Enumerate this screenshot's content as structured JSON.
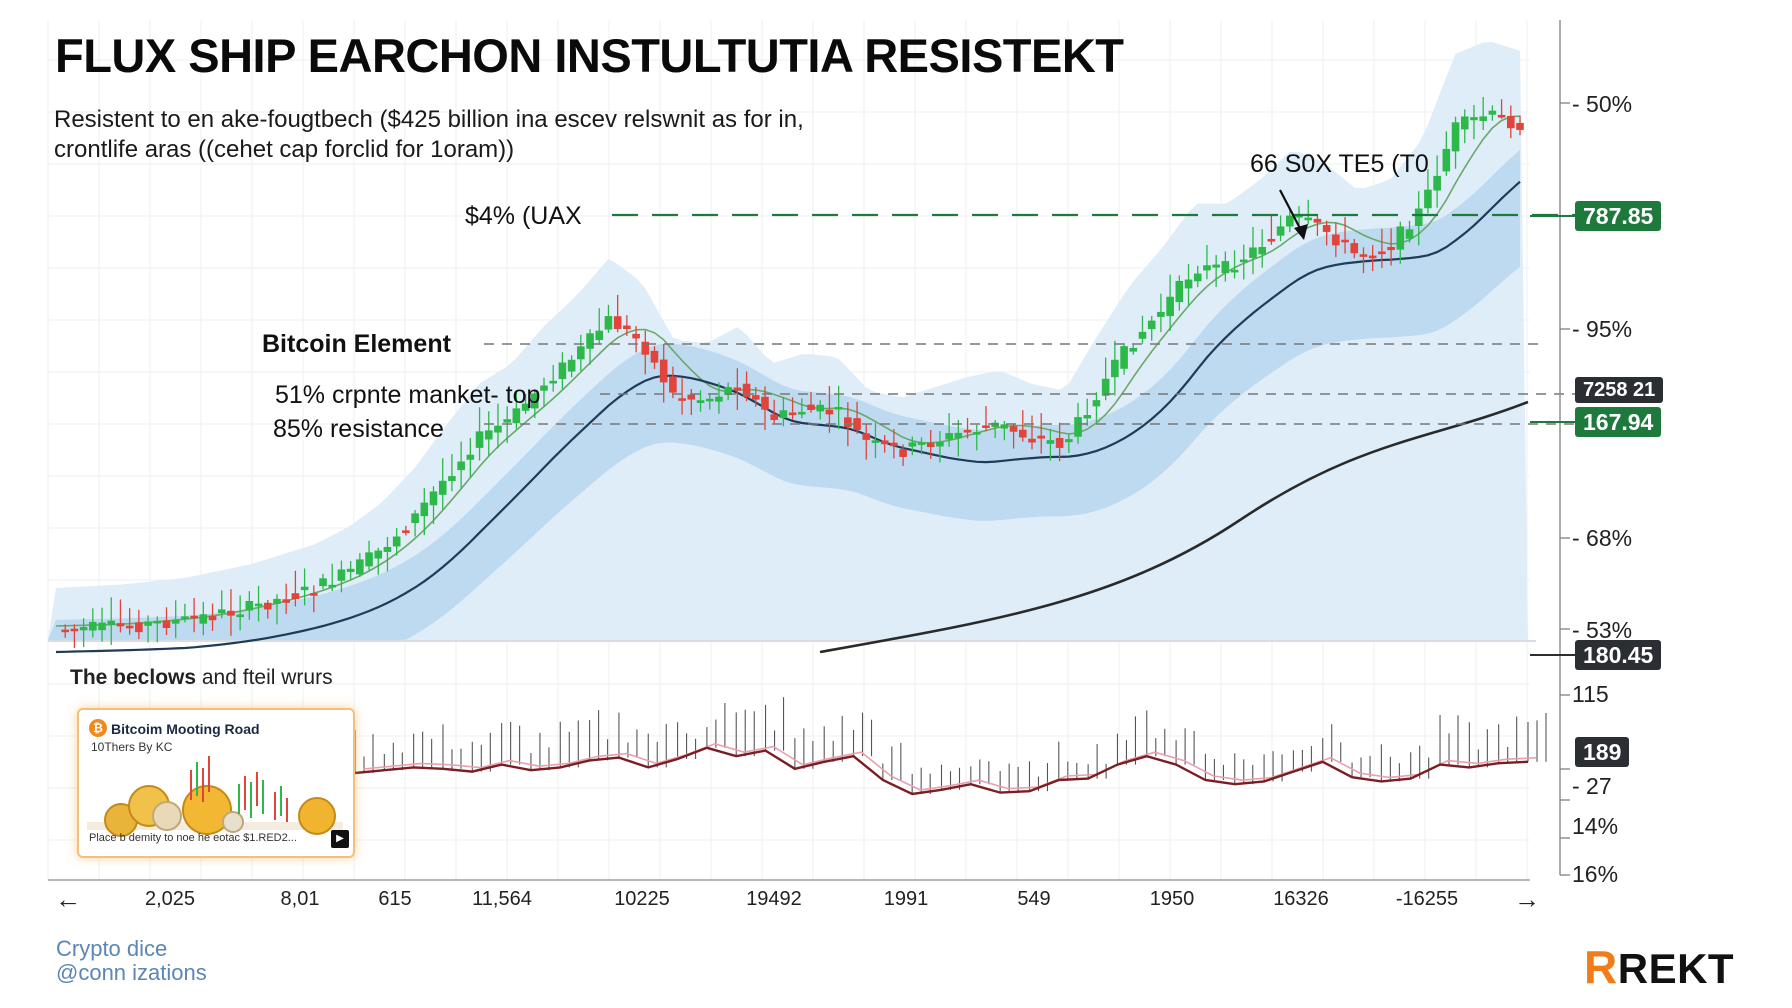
{
  "title": "FLUX SHIP EARCHON INSTULTUTIA RESISTEKT",
  "subtitle_line1": "Resistent to en ake-fougtbech ($425 billion ina escev relswnit as for in,",
  "subtitle_line2": "crontlife aras ((cehet cap forclid for 1oram))",
  "annotations": {
    "callout": "66 S0X TE5 (T0",
    "level_top": "$4% (UAX",
    "bitcoin_element": "Bitcoin Element",
    "market_top": "51% crpnte manket- top",
    "resistance": "85% resistance"
  },
  "price_tags": {
    "tag1": "787.85",
    "tag2": "7258 21",
    "tag3": "167.94",
    "tag4": "180.45",
    "tag5": "189"
  },
  "right_axis_labels": [
    "- 50%",
    "- 95%",
    "- 68%",
    "- 53%",
    "115",
    "- 27",
    "14%",
    "16%"
  ],
  "x_axis_labels": [
    "2,025",
    "8,01",
    "615",
    "11,564",
    "10225",
    "19492",
    "1991",
    "549",
    "1950",
    "16326",
    "-16255"
  ],
  "indicator": {
    "title_bold": "The beclows",
    "title_rest": " and fteil wrurs"
  },
  "thumbnail": {
    "title": "Bitcoim Mooting Road",
    "subtitle": "10Thers By KC",
    "footer": "Place b demity to noe he eotac $1.RED2...",
    "icon": "bitcoin-icon"
  },
  "footer": {
    "line1": "Crypto dice",
    "line2": "@conn izations"
  },
  "logo": {
    "letter": "R",
    "text": "REKT"
  },
  "colors": {
    "up": "#2db84a",
    "down": "#e0443a",
    "ma_dark": "#1f3b57",
    "ma_black": "#2a2a2a",
    "band": "#bcd8ee",
    "accent_green": "#1e7a3c",
    "logo_orange": "#f07d1a"
  },
  "chart_data": {
    "type": "line",
    "title": "FLUX SHIP EARCHON INSTULTUTIA RESISTEKT",
    "x_tick_labels": [
      "2,025",
      "8,01",
      "615",
      "11,564",
      "10225",
      "19492",
      "1991",
      "549",
      "1950",
      "16326",
      "-16255"
    ],
    "y_tick_labels_right": [
      "50%",
      "95%",
      "68%",
      "53%"
    ],
    "price_levels": [
      787.85,
      180.45,
      167.94
    ],
    "horizontal_levels": [
      {
        "label": "$4% (UAX",
        "style": "dashed-green"
      },
      {
        "label": "Bitcoin Element",
        "style": "dashed-gray"
      },
      {
        "label": "51% crpnte manket- top",
        "style": "dashed-gray"
      },
      {
        "label": "85% resistance",
        "style": "dashed-gray"
      }
    ],
    "price_series": [
      1,
      1.05,
      1.1,
      1.2,
      1.3,
      1.5,
      1.7,
      2,
      2.3,
      2.8,
      3.5,
      4.5,
      5.8,
      7,
      7.6,
      8.7,
      9.6,
      10.7,
      10,
      8.3,
      8.2,
      8.7,
      7.6,
      7.9,
      7.8,
      6.8,
      6.6,
      6.9,
      7.2,
      7.4,
      7,
      6.8,
      8.4,
      9.9,
      11,
      12.3,
      12.3,
      13,
      13.9,
      13.5,
      12.7,
      13,
      14.2,
      16.7,
      17.1,
      16.8
    ],
    "indicator_series": [
      3,
      3.2,
      3.4,
      3.3,
      3.1,
      3.6,
      3.2,
      3.4,
      3.9,
      4.1,
      3.4,
      4,
      4.8,
      4.2,
      4.6,
      3.3,
      3.8,
      4.2,
      2.5,
      1.5,
      1.8,
      2.2,
      1.6,
      1.7,
      2.5,
      2.6,
      3.6,
      4.2,
      3.6,
      2.5,
      2.2,
      2.4,
      3.1,
      3.8,
      2.7,
      2.4,
      2.6,
      3.6,
      3.4,
      3.7,
      3.8
    ],
    "grid": true,
    "legend": "none"
  }
}
